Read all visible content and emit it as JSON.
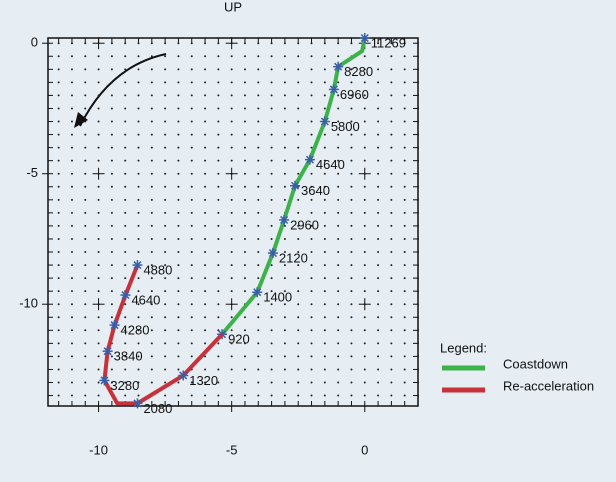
{
  "chart_data": {
    "type": "line",
    "ylabel": "UP",
    "legend_title": "Legend:",
    "legend": "right",
    "xlim": [
      -11.9,
      2.0
    ],
    "ylim": [
      -13.9,
      0.2
    ],
    "xticks": [
      -10,
      -5,
      0
    ],
    "yticks": [
      0,
      -5,
      -10
    ],
    "grid": true,
    "grid_dot_step": 0.5,
    "marker_color": "#3a5fa8",
    "series": [
      {
        "name": "Coastdown",
        "color": "#3cb34a",
        "x": [
          0,
          -0.1,
          -1.0,
          -1.16,
          -1.5,
          -2.06,
          -2.62,
          -3.03,
          -3.45,
          -4.04,
          -5.36
        ],
        "values": [
          0.2,
          -0.3,
          -0.9,
          -1.77,
          -3.0,
          -4.46,
          -5.46,
          -6.77,
          -8.04,
          -9.54,
          -11.15
        ],
        "point_labels": [
          "11269",
          null,
          "8280",
          "6960",
          "5800",
          "4640",
          "3640",
          "2960",
          "2120",
          "1400",
          "920"
        ]
      },
      {
        "name": "Re-acceleration",
        "color": "#c8303a",
        "x": [
          -5.36,
          -6.82,
          -8.54,
          -9.3,
          -9.78,
          -9.66,
          -9.4,
          -8.99,
          -8.54
        ],
        "values": [
          -11.15,
          -12.73,
          -13.8,
          -13.8,
          -12.92,
          -11.8,
          -10.8,
          -9.65,
          -8.5
        ],
        "point_labels": [
          null,
          "1320",
          "2080",
          null,
          "3280",
          "3840",
          "4280",
          "4640",
          "4880"
        ]
      }
    ]
  }
}
